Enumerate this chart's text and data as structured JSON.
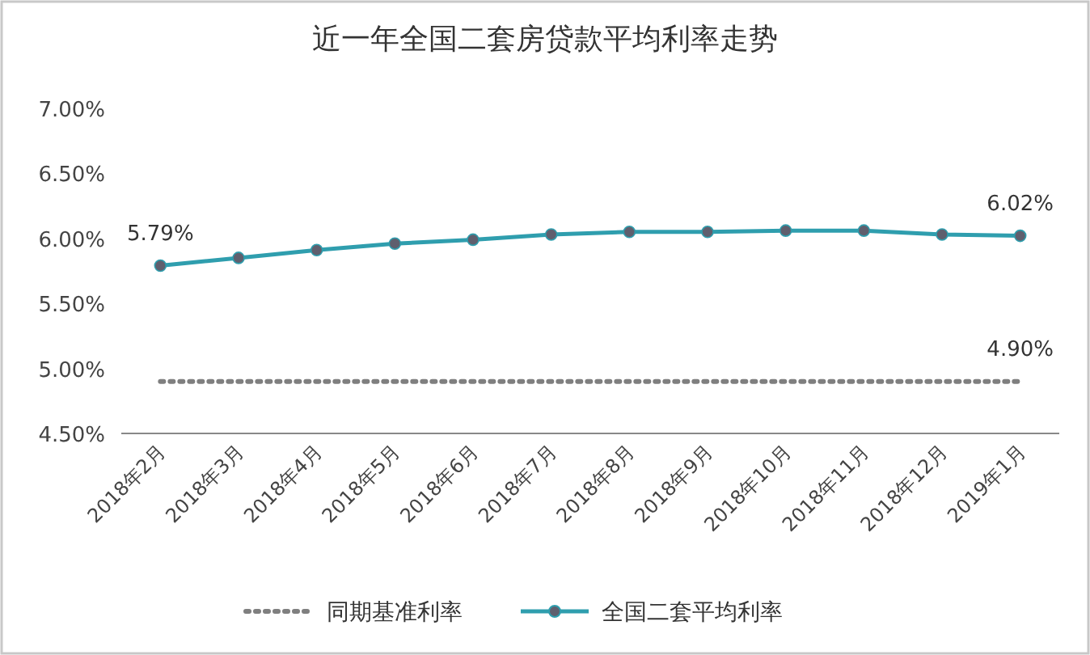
{
  "chart_data": {
    "type": "line",
    "title": "近一年全国二套房贷款平均利率走势",
    "categories": [
      "2018年2月",
      "2018年3月",
      "2018年4月",
      "2018年5月",
      "2018年6月",
      "2018年7月",
      "2018年8月",
      "2018年9月",
      "2018年10月",
      "2018年11月",
      "2018年12月",
      "2019年1月"
    ],
    "ylim": [
      4.5,
      7.0
    ],
    "yticks": [
      {
        "value": 4.5,
        "label": "4.50%"
      },
      {
        "value": 5.0,
        "label": "5.00%"
      },
      {
        "value": 5.5,
        "label": "5.50%"
      },
      {
        "value": 6.0,
        "label": "6.00%"
      },
      {
        "value": 6.5,
        "label": "6.50%"
      },
      {
        "value": 7.0,
        "label": "7.00%"
      }
    ],
    "legend": "bottom",
    "grid": false,
    "series": [
      {
        "name": "同期基准利率",
        "color": "#7f7f7f",
        "line_style": "dotted",
        "marker": "none",
        "values": [
          4.9,
          4.9,
          4.9,
          4.9,
          4.9,
          4.9,
          4.9,
          4.9,
          4.9,
          4.9,
          4.9,
          4.9
        ],
        "value_labels": [
          null,
          null,
          null,
          null,
          null,
          null,
          null,
          null,
          null,
          null,
          null,
          "4.90%"
        ]
      },
      {
        "name": "全国二套平均利率",
        "color": "#2f9eae",
        "line_style": "solid",
        "marker": "circle",
        "values": [
          5.79,
          5.85,
          5.91,
          5.96,
          5.99,
          6.03,
          6.05,
          6.05,
          6.06,
          6.06,
          6.03,
          6.02
        ],
        "value_labels": [
          "5.79%",
          null,
          null,
          null,
          null,
          null,
          null,
          null,
          null,
          null,
          null,
          "6.02%"
        ]
      }
    ]
  }
}
